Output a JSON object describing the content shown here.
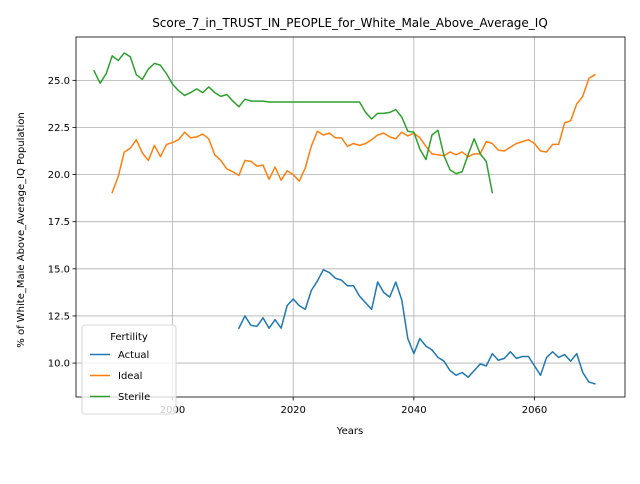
{
  "chart_data": {
    "type": "line",
    "title": "Score_7_in_TRUST_IN_PEOPLE_for_White_Male_Above_Average_IQ",
    "xlabel": "Years",
    "ylabel": "% of White_Male Above_Average_IQ Population",
    "xlim": [
      1984,
      2075
    ],
    "ylim": [
      8.2,
      27.3
    ],
    "x_ticks": [
      2000,
      2020,
      2040,
      2060
    ],
    "y_ticks": [
      10.0,
      12.5,
      15.0,
      17.5,
      20.0,
      22.5,
      25.0
    ],
    "y_tick_labels": [
      "10.0",
      "12.5",
      "15.0",
      "17.5",
      "20.0",
      "22.5",
      "25.0"
    ],
    "grid": true,
    "legend": {
      "title": "Fertility",
      "placement": "lower-left"
    },
    "colors": {
      "Actual": "#1f77b4",
      "Ideal": "#ff7f0e",
      "Sterile": "#2ca02c"
    },
    "series": [
      {
        "name": "Actual",
        "x": [
          2011,
          2012,
          2013,
          2014,
          2015,
          2016,
          2017,
          2018,
          2019,
          2020,
          2021,
          2022,
          2023,
          2024,
          2025,
          2026,
          2027,
          2028,
          2029,
          2030,
          2031,
          2032,
          2033,
          2034,
          2035,
          2036,
          2037,
          2038,
          2039,
          2040,
          2041,
          2042,
          2043,
          2044,
          2045,
          2046,
          2047,
          2048,
          2049,
          2050,
          2051,
          2052,
          2053,
          2054,
          2055,
          2056,
          2057,
          2058,
          2059,
          2060,
          2061,
          2062,
          2063,
          2064,
          2065,
          2066,
          2067,
          2068,
          2069,
          2070
        ],
        "y": [
          11.85,
          12.5,
          12.0,
          11.95,
          12.4,
          11.85,
          12.3,
          11.85,
          13.05,
          13.4,
          13.05,
          12.85,
          13.85,
          14.35,
          14.95,
          14.8,
          14.5,
          14.4,
          14.1,
          14.1,
          13.55,
          13.2,
          12.85,
          14.3,
          13.75,
          13.5,
          14.3,
          13.35,
          11.3,
          10.5,
          11.3,
          10.9,
          10.7,
          10.3,
          10.1,
          9.6,
          9.35,
          9.5,
          9.25,
          9.6,
          9.95,
          9.85,
          10.5,
          10.15,
          10.25,
          10.6,
          10.25,
          10.35,
          10.35,
          9.85,
          9.35,
          10.3,
          10.6,
          10.3,
          10.45,
          10.1,
          10.5,
          9.5,
          9.0,
          8.9
        ]
      },
      {
        "name": "Ideal",
        "x": [
          1990,
          1991,
          1992,
          1993,
          1994,
          1995,
          1996,
          1997,
          1998,
          1999,
          2000,
          2001,
          2002,
          2003,
          2004,
          2005,
          2006,
          2007,
          2008,
          2009,
          2010,
          2011,
          2012,
          2013,
          2014,
          2015,
          2016,
          2017,
          2018,
          2019,
          2020,
          2021,
          2022,
          2023,
          2024,
          2025,
          2026,
          2027,
          2028,
          2029,
          2030,
          2031,
          2032,
          2033,
          2034,
          2035,
          2036,
          2037,
          2038,
          2039,
          2040,
          2041,
          2042,
          2043,
          2044,
          2045,
          2046,
          2047,
          2048,
          2049,
          2050,
          2051,
          2052,
          2053,
          2054,
          2055,
          2056,
          2057,
          2058,
          2059,
          2060,
          2061,
          2062,
          2063,
          2064,
          2065,
          2066,
          2067,
          2068,
          2069,
          2070
        ],
        "y": [
          19.05,
          19.9,
          21.2,
          21.4,
          21.85,
          21.15,
          20.75,
          21.55,
          20.95,
          21.6,
          21.7,
          21.85,
          22.25,
          21.95,
          22.0,
          22.15,
          21.9,
          21.05,
          20.75,
          20.3,
          20.15,
          19.95,
          20.75,
          20.7,
          20.45,
          20.5,
          19.75,
          20.4,
          19.7,
          20.2,
          20.0,
          19.65,
          20.35,
          21.5,
          22.3,
          22.1,
          22.2,
          21.95,
          21.95,
          21.5,
          21.65,
          21.55,
          21.65,
          21.85,
          22.1,
          22.2,
          22.0,
          21.9,
          22.25,
          22.05,
          22.2,
          21.95,
          21.5,
          21.1,
          21.05,
          21.0,
          21.2,
          21.05,
          21.2,
          20.95,
          21.1,
          21.1,
          21.75,
          21.65,
          21.3,
          21.25,
          21.45,
          21.65,
          21.75,
          21.85,
          21.65,
          21.25,
          21.2,
          21.6,
          21.6,
          22.75,
          22.85,
          23.75,
          24.15,
          25.1,
          25.3
        ]
      },
      {
        "name": "Sterile",
        "x": [
          1987,
          1988,
          1989,
          1990,
          1991,
          1992,
          1993,
          1994,
          1995,
          1996,
          1997,
          1998,
          1999,
          2000,
          2001,
          2002,
          2003,
          2004,
          2005,
          2006,
          2007,
          2008,
          2009,
          2010,
          2011,
          2012,
          2013,
          2014,
          2015,
          2016,
          2017,
          2018,
          2019,
          2020,
          2021,
          2022,
          2023,
          2024,
          2025,
          2026,
          2027,
          2028,
          2029,
          2030,
          2031,
          2032,
          2033,
          2034,
          2035,
          2036,
          2037,
          2038,
          2039,
          2040,
          2041,
          2042,
          2043,
          2044,
          2045,
          2046,
          2047,
          2048,
          2049,
          2050,
          2051,
          2052,
          2053
        ],
        "y": [
          25.5,
          24.85,
          25.35,
          26.3,
          26.05,
          26.45,
          26.25,
          25.3,
          25.05,
          25.6,
          25.9,
          25.8,
          25.35,
          24.8,
          24.45,
          24.2,
          24.35,
          24.55,
          24.35,
          24.65,
          24.35,
          24.15,
          24.25,
          23.9,
          23.6,
          24.0,
          23.9,
          23.9,
          23.9,
          23.85,
          23.85,
          23.85,
          23.85,
          23.85,
          23.85,
          23.85,
          23.85,
          23.85,
          23.85,
          23.85,
          23.85,
          23.85,
          23.85,
          23.85,
          23.85,
          23.3,
          22.95,
          23.25,
          23.25,
          23.3,
          23.45,
          23.05,
          22.3,
          22.25,
          21.35,
          20.8,
          22.1,
          22.35,
          21.0,
          20.25,
          20.05,
          20.15,
          21.05,
          21.9,
          21.1,
          20.7,
          19.05
        ]
      }
    ]
  }
}
